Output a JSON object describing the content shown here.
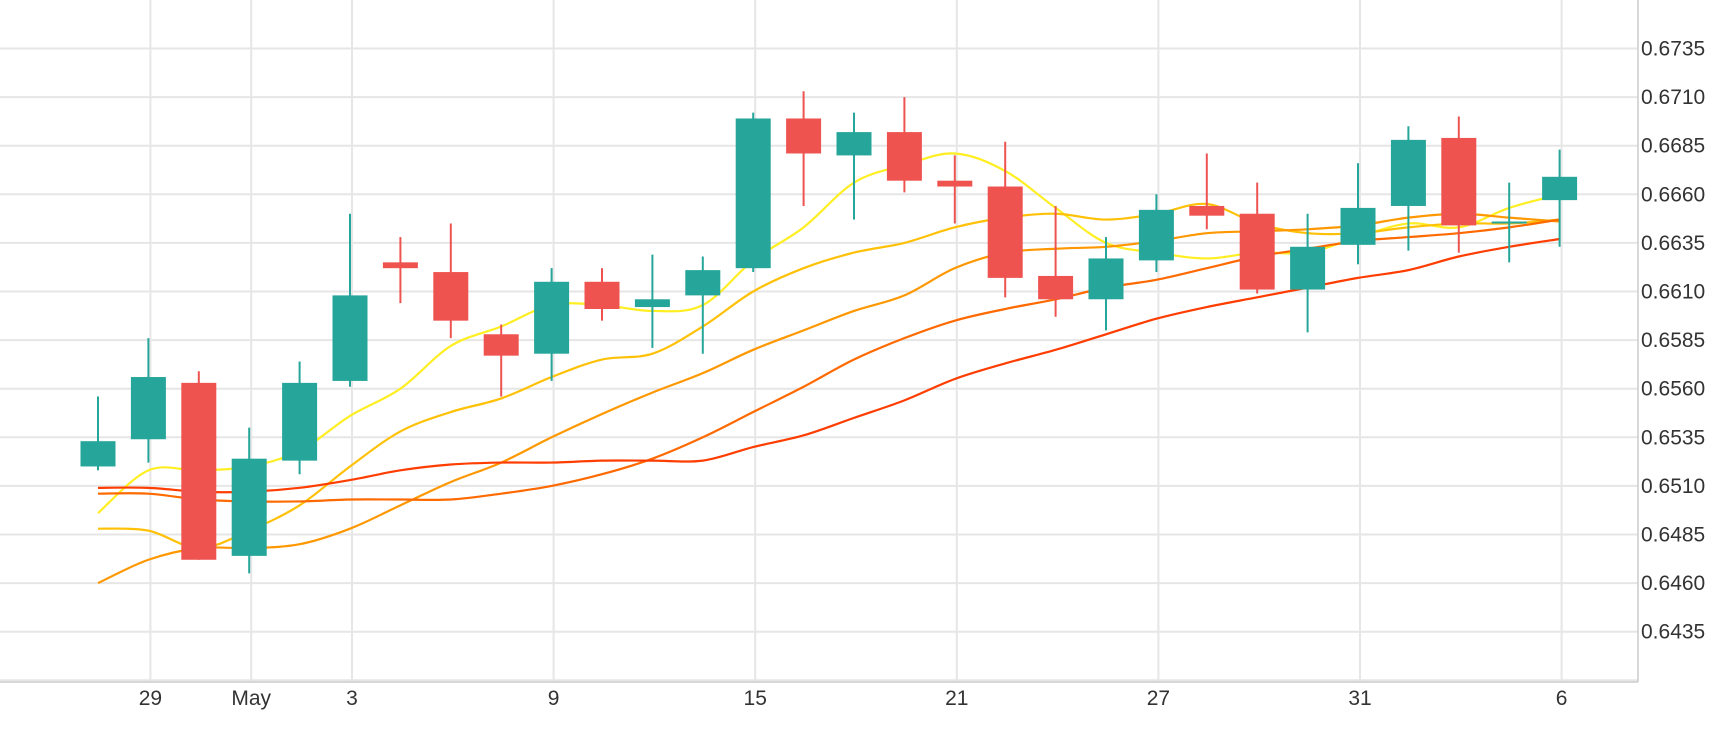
{
  "chart_data": {
    "type": "candlestick",
    "grid": true,
    "y_axis_position": "right",
    "ylim": [
      0.641,
      0.675
    ],
    "y_ticks": [
      0.6435,
      0.646,
      0.6485,
      0.651,
      0.6535,
      0.656,
      0.6585,
      0.661,
      0.6635,
      0.666,
      0.6685,
      0.671,
      0.6735
    ],
    "y_tick_labels": [
      "0.6435",
      "0.6460",
      "0.6485",
      "0.6510",
      "0.6535",
      "0.6560",
      "0.6585",
      "0.6610",
      "0.6635",
      "0.6660",
      "0.6685",
      "0.6710",
      "0.6735"
    ],
    "x_ticks": [
      {
        "label": "29",
        "index": 1
      },
      {
        "label": "May",
        "index": 3
      },
      {
        "label": "3",
        "index": 5
      },
      {
        "label": "9",
        "index": 9
      },
      {
        "label": "15",
        "index": 13
      },
      {
        "label": "21",
        "index": 17
      },
      {
        "label": "27",
        "index": 21
      },
      {
        "label": "31",
        "index": 25
      },
      {
        "label": "6",
        "index": 29
      }
    ],
    "colors": {
      "up": "#26a69a",
      "down": "#ef5350",
      "grid": "#e6e6e6",
      "axis": "#cccccc"
    },
    "candles": [
      {
        "o": 0.652,
        "h": 0.6556,
        "l": 0.6518,
        "c": 0.6533
      },
      {
        "o": 0.6534,
        "h": 0.6586,
        "l": 0.6522,
        "c": 0.6566
      },
      {
        "o": 0.6563,
        "h": 0.6569,
        "l": 0.6472,
        "c": 0.6472
      },
      {
        "o": 0.6474,
        "h": 0.654,
        "l": 0.6465,
        "c": 0.6524
      },
      {
        "o": 0.6523,
        "h": 0.6574,
        "l": 0.6516,
        "c": 0.6563
      },
      {
        "o": 0.6564,
        "h": 0.665,
        "l": 0.6561,
        "c": 0.6608
      },
      {
        "o": 0.6625,
        "h": 0.6638,
        "l": 0.6604,
        "c": 0.6622
      },
      {
        "o": 0.662,
        "h": 0.6645,
        "l": 0.6586,
        "c": 0.6595
      },
      {
        "o": 0.6588,
        "h": 0.6593,
        "l": 0.6556,
        "c": 0.6577
      },
      {
        "o": 0.6578,
        "h": 0.6622,
        "l": 0.6564,
        "c": 0.6615
      },
      {
        "o": 0.6615,
        "h": 0.6622,
        "l": 0.6595,
        "c": 0.6601
      },
      {
        "o": 0.6602,
        "h": 0.6629,
        "l": 0.6581,
        "c": 0.6606
      },
      {
        "o": 0.6608,
        "h": 0.6628,
        "l": 0.6578,
        "c": 0.6621
      },
      {
        "o": 0.6622,
        "h": 0.6702,
        "l": 0.662,
        "c": 0.6699
      },
      {
        "o": 0.6699,
        "h": 0.6713,
        "l": 0.6654,
        "c": 0.6681
      },
      {
        "o": 0.668,
        "h": 0.6702,
        "l": 0.6647,
        "c": 0.6692
      },
      {
        "o": 0.6692,
        "h": 0.671,
        "l": 0.6661,
        "c": 0.6667
      },
      {
        "o": 0.6667,
        "h": 0.668,
        "l": 0.6645,
        "c": 0.6664
      },
      {
        "o": 0.6664,
        "h": 0.6687,
        "l": 0.6607,
        "c": 0.6617
      },
      {
        "o": 0.6618,
        "h": 0.6654,
        "l": 0.6597,
        "c": 0.6606
      },
      {
        "o": 0.6606,
        "h": 0.6638,
        "l": 0.659,
        "c": 0.6627
      },
      {
        "o": 0.6626,
        "h": 0.666,
        "l": 0.662,
        "c": 0.6652
      },
      {
        "o": 0.6654,
        "h": 0.6681,
        "l": 0.6642,
        "c": 0.6649
      },
      {
        "o": 0.665,
        "h": 0.6666,
        "l": 0.6609,
        "c": 0.6611
      },
      {
        "o": 0.6611,
        "h": 0.665,
        "l": 0.6589,
        "c": 0.6633
      },
      {
        "o": 0.6634,
        "h": 0.6676,
        "l": 0.6624,
        "c": 0.6653
      },
      {
        "o": 0.6654,
        "h": 0.6695,
        "l": 0.6631,
        "c": 0.6688
      },
      {
        "o": 0.6689,
        "h": 0.67,
        "l": 0.663,
        "c": 0.6644
      },
      {
        "o": 0.6646,
        "h": 0.6666,
        "l": 0.6625,
        "c": 0.6646
      },
      {
        "o": 0.6657,
        "h": 0.6683,
        "l": 0.6633,
        "c": 0.6669
      }
    ],
    "series": [
      {
        "color": "#ffee22",
        "values": [
          0.6496,
          0.6518,
          0.6518,
          0.652,
          0.6528,
          0.6546,
          0.656,
          0.6582,
          0.6592,
          0.6603,
          0.6603,
          0.66,
          0.6603,
          0.6626,
          0.6643,
          0.6666,
          0.6675,
          0.6681,
          0.6672,
          0.6653,
          0.6635,
          0.663,
          0.6627,
          0.663,
          0.663,
          0.6638,
          0.6645,
          0.6643,
          0.6653,
          0.666
        ]
      },
      {
        "color": "#ffc107",
        "values": [
          0.6488,
          0.6487,
          0.6478,
          0.6487,
          0.65,
          0.652,
          0.6538,
          0.6548,
          0.6555,
          0.6566,
          0.6575,
          0.6578,
          0.6592,
          0.661,
          0.6622,
          0.663,
          0.6635,
          0.6643,
          0.6648,
          0.665,
          0.6647,
          0.665,
          0.6655,
          0.6645,
          0.664,
          0.664,
          0.6643,
          0.6645,
          0.6645,
          0.6647
        ]
      },
      {
        "color": "#ff9800",
        "values": [
          0.646,
          0.6472,
          0.6478,
          0.6478,
          0.648,
          0.6488,
          0.65,
          0.6512,
          0.6522,
          0.6535,
          0.6547,
          0.6558,
          0.6568,
          0.658,
          0.659,
          0.66,
          0.6608,
          0.6622,
          0.663,
          0.6632,
          0.6633,
          0.6636,
          0.664,
          0.6641,
          0.6642,
          0.6644,
          0.6648,
          0.665,
          0.6648,
          0.6646
        ]
      },
      {
        "color": "#ff6a00",
        "values": [
          0.6506,
          0.6506,
          0.6503,
          0.6502,
          0.6502,
          0.6503,
          0.6503,
          0.6503,
          0.6506,
          0.651,
          0.6516,
          0.6524,
          0.6535,
          0.6548,
          0.6561,
          0.6575,
          0.6586,
          0.6595,
          0.6601,
          0.6606,
          0.6612,
          0.6616,
          0.6622,
          0.6628,
          0.6632,
          0.6636,
          0.6638,
          0.664,
          0.6643,
          0.6647
        ]
      },
      {
        "color": "#ff3d00",
        "values": [
          0.6509,
          0.6509,
          0.6507,
          0.6507,
          0.6509,
          0.6513,
          0.6518,
          0.6521,
          0.6522,
          0.6522,
          0.6523,
          0.6523,
          0.6523,
          0.653,
          0.6536,
          0.6545,
          0.6554,
          0.6565,
          0.6573,
          0.658,
          0.6588,
          0.6596,
          0.6602,
          0.6607,
          0.6612,
          0.6617,
          0.6621,
          0.6628,
          0.6633,
          0.6637
        ]
      }
    ]
  }
}
